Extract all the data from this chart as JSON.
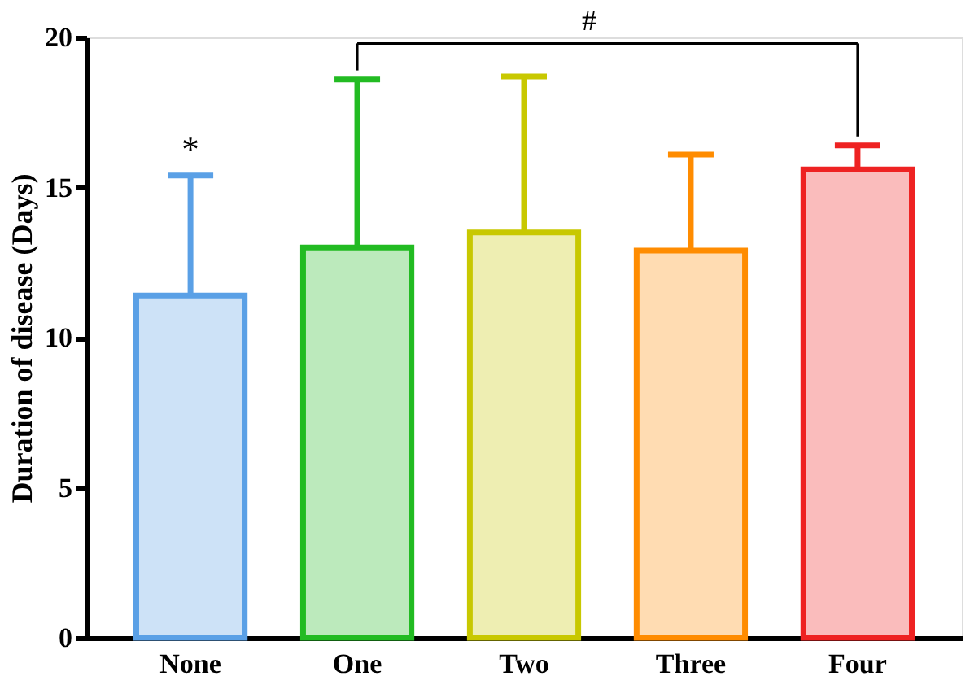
{
  "chart_data": {
    "type": "bar",
    "ylabel": "Duration of disease (Days)",
    "categories": [
      "None",
      "One",
      "Two",
      "Three",
      "Four"
    ],
    "values": [
      11.4,
      13.0,
      13.5,
      12.9,
      15.6
    ],
    "errors": [
      [
        11.4,
        15.4
      ],
      [
        13.0,
        18.6
      ],
      [
        13.5,
        18.7
      ],
      [
        12.9,
        16.1
      ],
      [
        15.6,
        16.4
      ]
    ],
    "colors": [
      "#5aa0e6",
      "#22bb22",
      "#c8c800",
      "#ff8c00",
      "#ee2222"
    ],
    "ylim": [
      0,
      20
    ],
    "yticks": [
      0,
      5,
      10,
      15,
      20
    ],
    "grid": false,
    "annotations": [
      {
        "text": "*",
        "x": "None",
        "y": 15.4
      },
      "#"
    ]
  }
}
